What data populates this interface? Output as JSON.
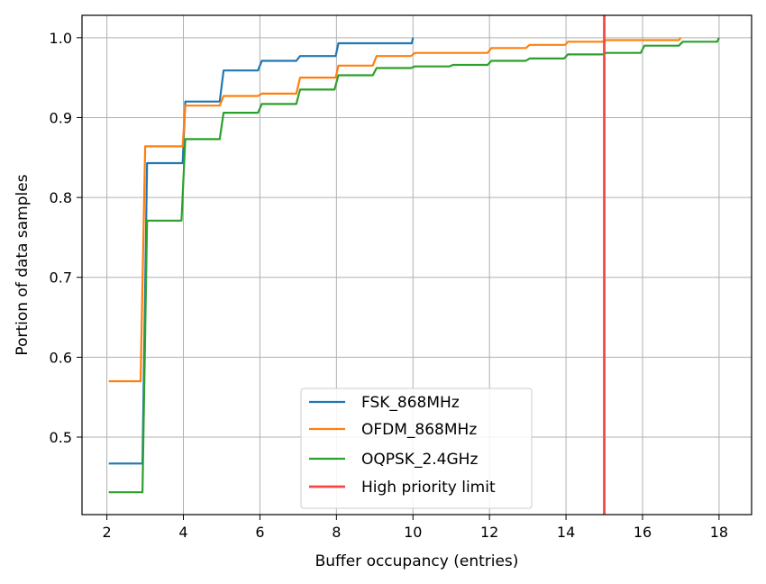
{
  "chart_data": {
    "type": "line",
    "step": true,
    "xlabel": "Buffer occupancy (entries)",
    "ylabel": "Portion of data samples",
    "xlim": [
      1.35,
      18.85
    ],
    "ylim": [
      0.403,
      1.028
    ],
    "xticks": [
      2,
      4,
      6,
      8,
      10,
      12,
      14,
      16,
      18
    ],
    "yticks": [
      0.5,
      0.6,
      0.7,
      0.8,
      0.9,
      1.0
    ],
    "grid": true,
    "legend_position": "lower-center",
    "series": [
      {
        "name": "FSK_868MHz",
        "color": "#1f77b4",
        "points": [
          [
            2.05,
            0.467
          ],
          [
            2.93,
            0.467
          ],
          [
            3.05,
            0.843
          ],
          [
            3.98,
            0.843
          ],
          [
            4.05,
            0.92
          ],
          [
            4.95,
            0.92
          ],
          [
            5.05,
            0.959
          ],
          [
            5.95,
            0.959
          ],
          [
            6.05,
            0.971
          ],
          [
            6.95,
            0.971
          ],
          [
            7.05,
            0.977
          ],
          [
            7.98,
            0.977
          ],
          [
            8.05,
            0.993
          ],
          [
            9.97,
            0.993
          ],
          [
            10.0,
            1.0
          ]
        ]
      },
      {
        "name": "OFDM_868MHz",
        "color": "#ff7f0e",
        "points": [
          [
            2.05,
            0.57
          ],
          [
            2.88,
            0.57
          ],
          [
            3.0,
            0.864
          ],
          [
            3.98,
            0.864
          ],
          [
            4.05,
            0.915
          ],
          [
            4.95,
            0.915
          ],
          [
            5.05,
            0.927
          ],
          [
            5.95,
            0.927
          ],
          [
            6.05,
            0.93
          ],
          [
            6.95,
            0.93
          ],
          [
            7.05,
            0.95
          ],
          [
            7.98,
            0.95
          ],
          [
            8.05,
            0.965
          ],
          [
            8.95,
            0.965
          ],
          [
            9.05,
            0.977
          ],
          [
            9.95,
            0.977
          ],
          [
            10.05,
            0.981
          ],
          [
            11.95,
            0.981
          ],
          [
            12.05,
            0.987
          ],
          [
            12.95,
            0.987
          ],
          [
            13.05,
            0.991
          ],
          [
            13.98,
            0.991
          ],
          [
            14.05,
            0.995
          ],
          [
            14.95,
            0.995
          ],
          [
            15.05,
            0.997
          ],
          [
            16.95,
            0.997
          ],
          [
            17.0,
            1.0
          ]
        ]
      },
      {
        "name": "OQPSK_2.4GHz",
        "color": "#2ca02c",
        "points": [
          [
            2.05,
            0.431
          ],
          [
            2.93,
            0.431
          ],
          [
            3.05,
            0.771
          ],
          [
            3.95,
            0.771
          ],
          [
            4.05,
            0.873
          ],
          [
            4.95,
            0.873
          ],
          [
            5.05,
            0.906
          ],
          [
            5.95,
            0.906
          ],
          [
            6.05,
            0.917
          ],
          [
            6.95,
            0.917
          ],
          [
            7.05,
            0.935
          ],
          [
            7.95,
            0.935
          ],
          [
            8.05,
            0.953
          ],
          [
            8.95,
            0.953
          ],
          [
            9.05,
            0.962
          ],
          [
            9.95,
            0.962
          ],
          [
            10.05,
            0.964
          ],
          [
            10.95,
            0.964
          ],
          [
            11.05,
            0.966
          ],
          [
            11.95,
            0.966
          ],
          [
            12.05,
            0.971
          ],
          [
            12.95,
            0.971
          ],
          [
            13.05,
            0.974
          ],
          [
            13.95,
            0.974
          ],
          [
            14.05,
            0.979
          ],
          [
            14.95,
            0.979
          ],
          [
            15.05,
            0.981
          ],
          [
            15.95,
            0.981
          ],
          [
            16.05,
            0.99
          ],
          [
            16.95,
            0.99
          ],
          [
            17.05,
            0.995
          ],
          [
            17.95,
            0.995
          ],
          [
            18.0,
            1.0
          ]
        ]
      }
    ],
    "vline": {
      "name": "High priority limit",
      "x": 15,
      "color": "#f04a48"
    }
  }
}
